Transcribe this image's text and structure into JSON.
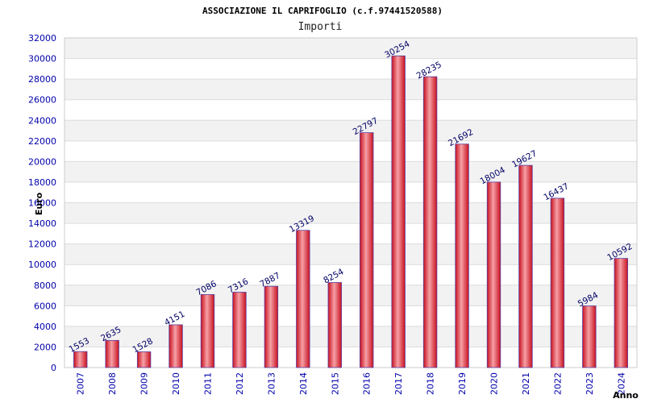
{
  "chart_data": {
    "type": "bar",
    "title": "ASSOCIAZIONE IL CAPRIFOGLIO (c.f.97441520588)",
    "subtitle": "Importi",
    "ylabel": "Euro",
    "xlabel": "Anno",
    "ylim": [
      0,
      32000
    ],
    "ytick_step": 2000,
    "grid": true,
    "categories": [
      "2007",
      "2008",
      "2009",
      "2010",
      "2011",
      "2012",
      "2013",
      "2014",
      "2015",
      "2016",
      "2017",
      "2018",
      "2019",
      "2020",
      "2021",
      "2022",
      "2023",
      "2024"
    ],
    "values": [
      1553,
      2635,
      1528,
      4151,
      7086,
      7316,
      7887,
      13319,
      8254,
      22797,
      30254,
      28235,
      21692,
      18004,
      19627,
      16437,
      5984,
      10592
    ],
    "colors": {
      "bar": "#e8283a",
      "bar_highlight": "#f6a0a6",
      "bar_edge": "#5a3fa0",
      "band": "#f2f2f2",
      "tick": "#0000aa"
    }
  }
}
